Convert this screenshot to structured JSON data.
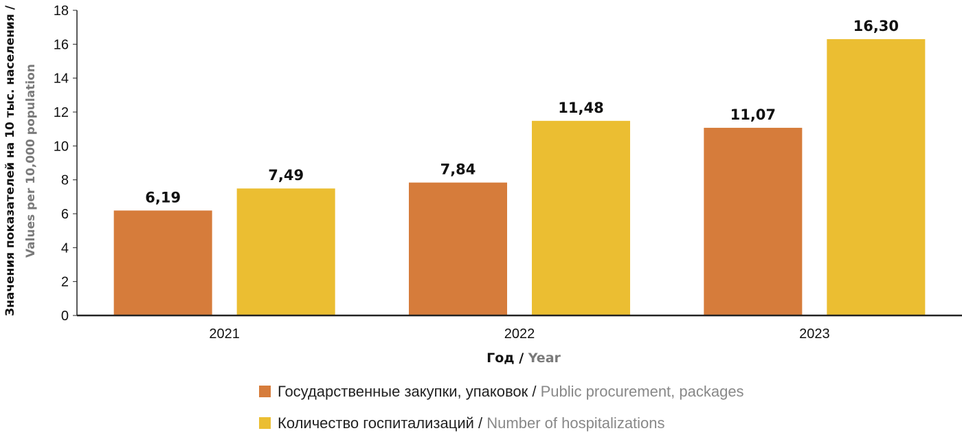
{
  "chart_data": {
    "type": "bar",
    "categories": [
      "2021",
      "2022",
      "2023"
    ],
    "series": [
      {
        "name_ru": "Государственные закупки, упаковок",
        "name_en": "Public procurement, packages",
        "color": "#d67c3b",
        "values": [
          6.19,
          7.84,
          11.07
        ],
        "labels": [
          "6,19",
          "7,84",
          "11,07"
        ]
      },
      {
        "name_ru": "Количество госпитализаций",
        "name_en": "Number of hospitalizations",
        "color": "#ebbe32",
        "values": [
          7.49,
          11.48,
          16.3
        ],
        "labels": [
          "7,49",
          "11,48",
          "16,30"
        ]
      }
    ],
    "ylim": [
      0,
      18
    ],
    "yticks": [
      "0",
      "2",
      "4",
      "6",
      "8",
      "10",
      "12",
      "14",
      "16",
      "18"
    ],
    "ylabel_ru": "Значения показателей на 10 тыс. населения /",
    "ylabel_en": "Values per 10,000 population",
    "xlabel_ru": "Год",
    "xlabel_en": "Year",
    "separator": " / ",
    "grid": false,
    "legend_position": "bottom"
  }
}
